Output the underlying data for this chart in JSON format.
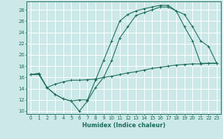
{
  "background_color": "#cce8e8",
  "grid_color": "#b0d4d4",
  "line_color": "#1a6b5a",
  "xlabel": "Humidex (Indice chaleur)",
  "xlim": [
    -0.5,
    23.5
  ],
  "ylim": [
    9.5,
    29.5
  ],
  "xticks": [
    0,
    1,
    2,
    3,
    4,
    5,
    6,
    7,
    8,
    9,
    10,
    11,
    12,
    13,
    14,
    15,
    16,
    17,
    18,
    19,
    20,
    21,
    22,
    23
  ],
  "yticks": [
    10,
    12,
    14,
    16,
    18,
    20,
    22,
    24,
    26,
    28
  ],
  "curve1_x": [
    0,
    1,
    2,
    3,
    4,
    5,
    6,
    7,
    8,
    9,
    10,
    11,
    12,
    13,
    14,
    15,
    16,
    17,
    18,
    19,
    20,
    21,
    22,
    23
  ],
  "curve1_y": [
    16.5,
    16.7,
    14.2,
    13.0,
    12.2,
    11.8,
    10.0,
    11.8,
    14.2,
    16.0,
    19.0,
    23.0,
    25.0,
    27.0,
    27.5,
    28.0,
    28.5,
    28.5,
    27.8,
    25.0,
    22.5,
    18.5,
    18.5,
    18.5
  ],
  "curve2_x": [
    0,
    1,
    2,
    3,
    4,
    5,
    6,
    7,
    8,
    9,
    10,
    11,
    12,
    13,
    14,
    15,
    16,
    17,
    18,
    19,
    20,
    21,
    22,
    23
  ],
  "curve2_y": [
    16.5,
    16.7,
    14.2,
    14.8,
    15.2,
    15.5,
    15.5,
    15.6,
    15.7,
    16.0,
    16.2,
    16.5,
    16.8,
    17.0,
    17.3,
    17.6,
    17.8,
    18.0,
    18.2,
    18.3,
    18.4,
    18.4,
    18.5,
    18.5
  ],
  "curve3_x": [
    0,
    1,
    2,
    3,
    4,
    5,
    6,
    7,
    8,
    9,
    10,
    11,
    12,
    13,
    14,
    15,
    16,
    17,
    18,
    19,
    20,
    21,
    22,
    23
  ],
  "curve3_y": [
    16.5,
    16.5,
    14.2,
    13.0,
    12.2,
    11.8,
    12.0,
    12.0,
    15.5,
    19.0,
    22.5,
    26.0,
    27.2,
    27.8,
    28.2,
    28.5,
    28.8,
    28.8,
    27.8,
    27.2,
    25.0,
    22.5,
    21.5,
    18.5
  ]
}
